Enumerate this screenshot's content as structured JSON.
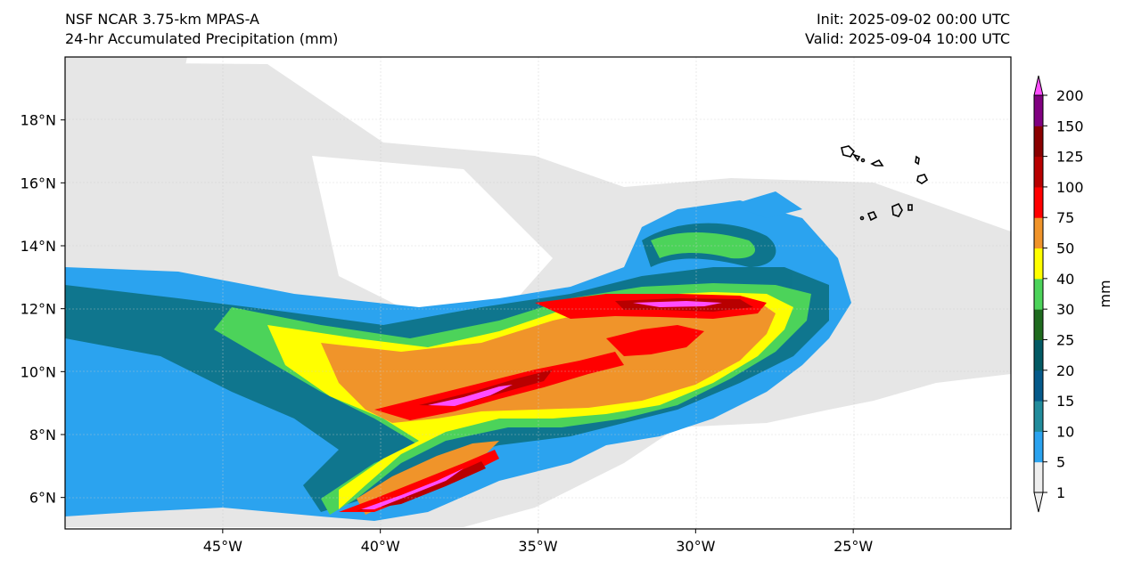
{
  "header": {
    "model": "NSF NCAR 3.75-km MPAS-A",
    "field": "24-hr Accumulated Precipitation (mm)",
    "init": "Init: 2025-09-02 00:00 UTC",
    "valid": "Valid: 2025-09-04 10:00 UTC"
  },
  "map": {
    "lon_range": [
      -50,
      -20
    ],
    "lat_range": [
      5,
      20
    ],
    "lon_ticks": [
      {
        "value": -45,
        "label": "45°W"
      },
      {
        "value": -40,
        "label": "40°W"
      },
      {
        "value": -35,
        "label": "35°W"
      },
      {
        "value": -30,
        "label": "30°W"
      },
      {
        "value": -25,
        "label": "25°W"
      }
    ],
    "lat_ticks": [
      {
        "value": 6,
        "label": "6°N"
      },
      {
        "value": 8,
        "label": "8°N"
      },
      {
        "value": 10,
        "label": "10°N"
      },
      {
        "value": 12,
        "label": "12°N"
      },
      {
        "value": 14,
        "label": "14°N"
      },
      {
        "value": 16,
        "label": "16°N"
      },
      {
        "value": 18,
        "label": "18°N"
      }
    ],
    "gridlines": true,
    "coastline_color": "#000000"
  },
  "colorbar": {
    "unit_label": "mm",
    "extend": "both",
    "levels": [
      {
        "label": "1",
        "color": "#eeeeee"
      },
      {
        "label": "5",
        "color": "#2ba3ef"
      },
      {
        "label": "10",
        "color": "#228c9c"
      },
      {
        "label": "15",
        "color": "#055a8a"
      },
      {
        "label": "20",
        "color": "#035a64"
      },
      {
        "label": "25",
        "color": "#1f6b1f"
      },
      {
        "label": "30",
        "color": "#4cd35a"
      },
      {
        "label": "40",
        "color": "#ffff00"
      },
      {
        "label": "50",
        "color": "#f0942a"
      },
      {
        "label": "75",
        "color": "#ff0000"
      },
      {
        "label": "100",
        "color": "#b80000"
      },
      {
        "label": "125",
        "color": "#8a0000"
      },
      {
        "label": "150",
        "color": "#800080"
      },
      {
        "label": "200",
        "color": "#ff4dff"
      }
    ]
  }
}
